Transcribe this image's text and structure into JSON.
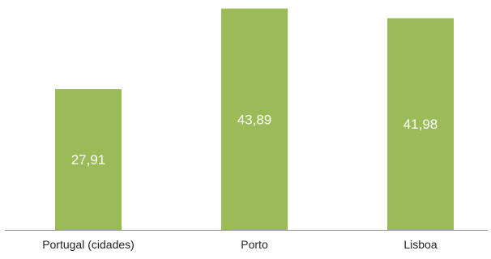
{
  "chart_data": {
    "type": "bar",
    "title": "",
    "xlabel": "",
    "ylabel": "",
    "categories": [
      "Portugal (cidades)",
      "Porto",
      "Lisboa"
    ],
    "values": [
      27.91,
      43.89,
      41.98
    ],
    "value_labels": [
      "27,91",
      "43,89",
      "41,98"
    ],
    "ylim": [
      0,
      44.3
    ],
    "grid": false,
    "legend": "none",
    "colors": {
      "bar": "#9bbb59",
      "axis": "#8c8c8c",
      "label": "#ffffff"
    }
  }
}
